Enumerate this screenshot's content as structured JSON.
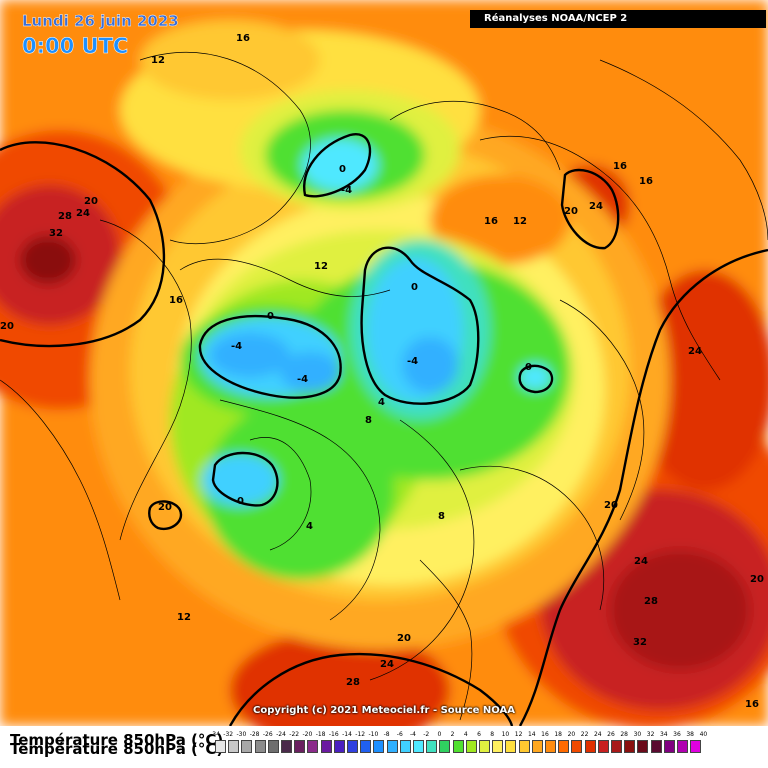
{
  "header": {
    "date": "Lundi 26 juin 2023",
    "time": "0:00 UTC",
    "source_banner": "Réanalyses NOAA/NCEP 2"
  },
  "map": {
    "field": "temperature-850hPa",
    "isotherm_labels": [
      {
        "id": "l1",
        "text": "16"
      },
      {
        "id": "l2",
        "text": "12"
      },
      {
        "id": "l3",
        "text": "20"
      },
      {
        "id": "l4",
        "text": "28"
      },
      {
        "id": "l5",
        "text": "24"
      },
      {
        "id": "l6",
        "text": "32"
      },
      {
        "id": "l7",
        "text": "20"
      },
      {
        "id": "l8",
        "text": "0"
      },
      {
        "id": "l9",
        "text": "-4"
      },
      {
        "id": "l10",
        "text": "16"
      },
      {
        "id": "l11",
        "text": "12"
      },
      {
        "id": "l12",
        "text": "16"
      },
      {
        "id": "l13",
        "text": "16"
      },
      {
        "id": "l14",
        "text": "20"
      },
      {
        "id": "l15",
        "text": "24"
      },
      {
        "id": "l16",
        "text": "12"
      },
      {
        "id": "l17",
        "text": "16"
      },
      {
        "id": "l18",
        "text": "0"
      },
      {
        "id": "l19",
        "text": "-4"
      },
      {
        "id": "l20",
        "text": "-4"
      },
      {
        "id": "l21",
        "text": "0"
      },
      {
        "id": "l22",
        "text": "-4"
      },
      {
        "id": "l23",
        "text": "0"
      },
      {
        "id": "l24",
        "text": "4"
      },
      {
        "id": "l25",
        "text": "8"
      },
      {
        "id": "l26",
        "text": "24"
      },
      {
        "id": "l27",
        "text": "0"
      },
      {
        "id": "l28",
        "text": "4"
      },
      {
        "id": "l29",
        "text": "8"
      },
      {
        "id": "l30",
        "text": "20"
      },
      {
        "id": "l31",
        "text": "20"
      },
      {
        "id": "l32",
        "text": "12"
      },
      {
        "id": "l33",
        "text": "24"
      },
      {
        "id": "l34",
        "text": "28"
      },
      {
        "id": "l35",
        "text": "32"
      },
      {
        "id": "l36",
        "text": "20"
      },
      {
        "id": "l37",
        "text": "20"
      },
      {
        "id": "l38",
        "text": "24"
      },
      {
        "id": "l39",
        "text": "28"
      },
      {
        "id": "l40",
        "text": "16"
      }
    ]
  },
  "copyright": "Copyright (c) 2021 Meteociel.fr - Source NOAA",
  "legend": {
    "title": "Température 850hPa (°C)",
    "ticks": [
      "-34",
      "-32",
      "-30",
      "-28",
      "-26",
      "-24",
      "-22",
      "-20",
      "-18",
      "-16",
      "-14",
      "-12",
      "-10",
      "-8",
      "-6",
      "-4",
      "-2",
      "0",
      "2",
      "4",
      "6",
      "8",
      "10",
      "12",
      "14",
      "16",
      "18",
      "20",
      "22",
      "24",
      "26",
      "28",
      "30",
      "32",
      "34",
      "36",
      "38",
      "40"
    ],
    "colors": [
      "#e6e6e6",
      "#c8c8c8",
      "#a8a8a8",
      "#8c8c8c",
      "#6e6e6e",
      "#4a2a4a",
      "#6a2060",
      "#8a2a8a",
      "#6a1aa0",
      "#4a20c0",
      "#3040e0",
      "#2060f0",
      "#1e90ff",
      "#30b0ff",
      "#40d0ff",
      "#50e8ff",
      "#40e0c0",
      "#30d060",
      "#50e030",
      "#a0e820",
      "#e0f040",
      "#fff060",
      "#ffe040",
      "#ffc830",
      "#ffa820",
      "#ff8c10",
      "#ff6a00",
      "#f04a00",
      "#e03000",
      "#c82020",
      "#a81818",
      "#8a1010",
      "#6a0a1a",
      "#5a0a30",
      "#800080",
      "#b000b0",
      "#e000e0"
    ]
  }
}
